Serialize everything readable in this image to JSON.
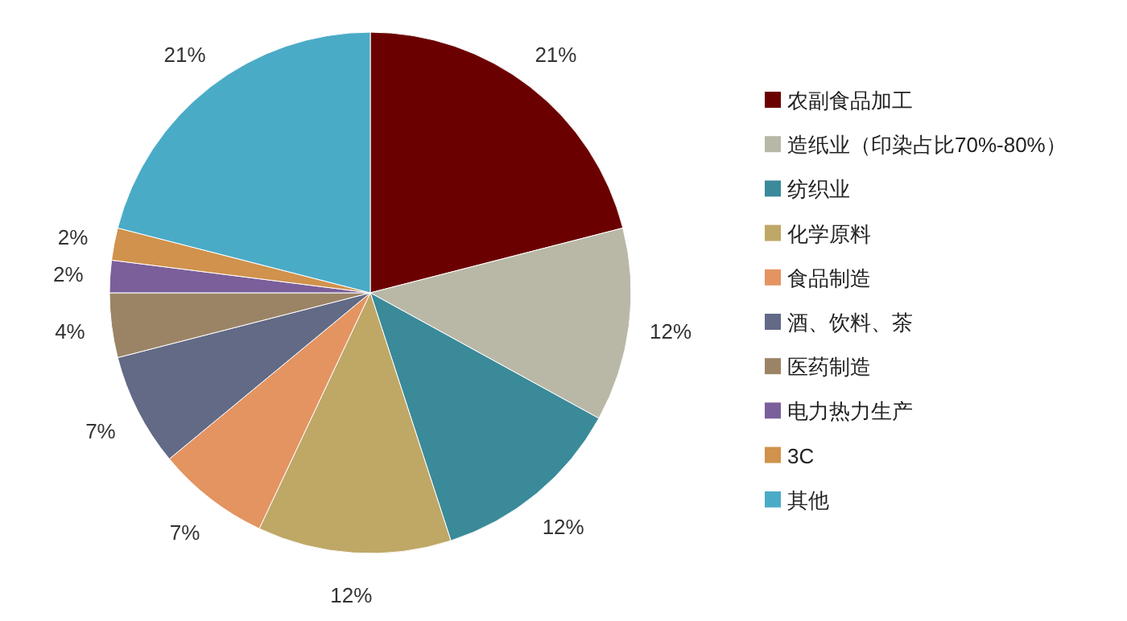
{
  "chart_data": {
    "type": "pie",
    "categories": [
      "农副食品加工",
      "造纸业（印染占比70%-80%）",
      "纺织业",
      "化学原料",
      "食品制造",
      "酒、饮料、茶",
      "医药制造",
      "电力热力生产",
      "3C",
      "其他"
    ],
    "values": [
      21,
      12,
      12,
      12,
      7,
      7,
      4,
      2,
      2,
      21
    ],
    "colors": [
      "#6b0000",
      "#b9b8a6",
      "#3a8a99",
      "#bfa766",
      "#e39461",
      "#626a86",
      "#9b8466",
      "#7b5f9b",
      "#d0924c",
      "#4aabc7"
    ],
    "value_labels": [
      "21%",
      "12%",
      "12%",
      "12%",
      "7%",
      "7%",
      "4%",
      "2%",
      "2%",
      "21%"
    ],
    "legend": "right"
  }
}
